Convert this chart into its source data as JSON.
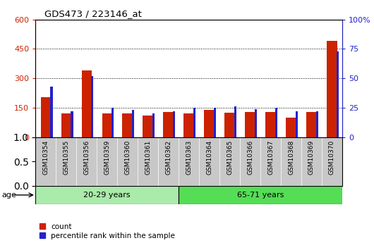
{
  "title": "GDS473 / 223146_at",
  "samples": [
    "GSM10354",
    "GSM10355",
    "GSM10356",
    "GSM10359",
    "GSM10360",
    "GSM10361",
    "GSM10362",
    "GSM10363",
    "GSM10364",
    "GSM10365",
    "GSM10366",
    "GSM10367",
    "GSM10368",
    "GSM10369",
    "GSM10370"
  ],
  "counts": [
    205,
    120,
    340,
    120,
    120,
    110,
    130,
    120,
    140,
    125,
    130,
    130,
    100,
    130,
    490
  ],
  "percentiles": [
    43,
    22,
    52,
    25,
    23,
    20,
    22,
    25,
    25,
    26,
    24,
    25,
    22,
    22,
    73
  ],
  "groups": [
    {
      "label": "20-29 years",
      "start": 0,
      "end": 7,
      "color": "#aaeaaa"
    },
    {
      "label": "65-71 years",
      "start": 7,
      "end": 15,
      "color": "#55dd55"
    }
  ],
  "age_label": "age",
  "bar_color_count": "#cc2200",
  "bar_color_pct": "#2222cc",
  "ylim_left": [
    0,
    600
  ],
  "ylim_right": [
    0,
    100
  ],
  "yticks_left": [
    0,
    150,
    300,
    450,
    600
  ],
  "yticks_right": [
    0,
    25,
    50,
    75,
    100
  ],
  "legend_count": "count",
  "legend_pct": "percentile rank within the sample",
  "grid_color": "#000000",
  "background_color": "#ffffff",
  "tick_area_color": "#c8c8c8",
  "count_bar_width": 0.5,
  "pct_bar_width": 0.12
}
